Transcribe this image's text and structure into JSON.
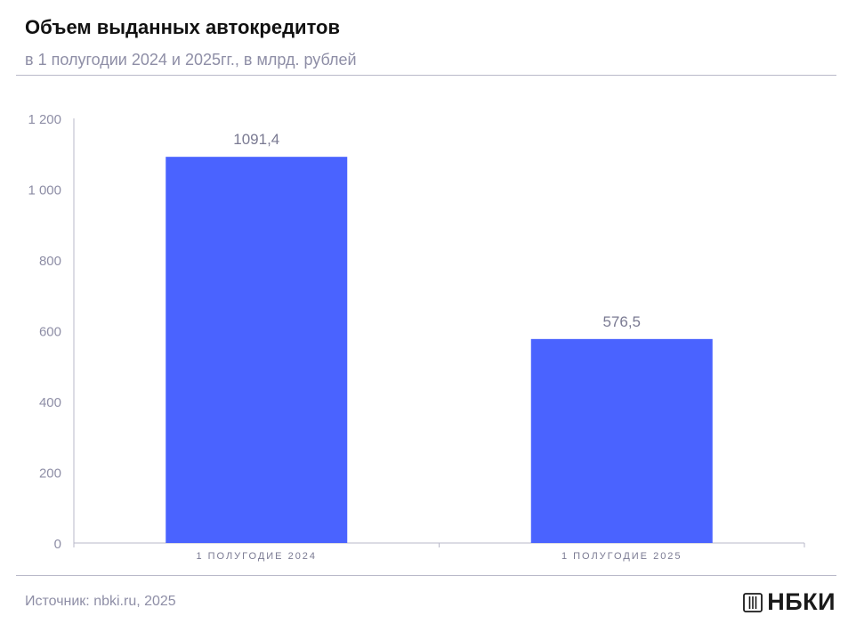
{
  "header": {
    "title": "Объем выданных автокредитов",
    "subtitle": "в 1 полугодии 2024 и 2025гг., в млрд. рублей"
  },
  "footer": {
    "source": "Источник: nbki.ru, 2025",
    "logo_text": "НБКИ",
    "logo_icon": "nbki-logo-icon"
  },
  "colors": {
    "bar": "#4a63ff",
    "axis_text": "#8e8ea6",
    "label_text": "#7a7a92",
    "axis_line": "#b9b9c9"
  },
  "chart_data": {
    "type": "bar",
    "categories": [
      "1 ПОЛУГОДИЕ 2024",
      "1 ПОЛУГОДИЕ 2025"
    ],
    "values": [
      1091.4,
      576.5
    ],
    "value_labels": [
      "1091,4",
      "576,5"
    ],
    "yticks": [
      0,
      200,
      400,
      600,
      800,
      1000,
      1200
    ],
    "ytick_labels": [
      "0",
      "200",
      "400",
      "600",
      "800",
      "1 000",
      "1 200"
    ],
    "ylim": [
      0,
      1200
    ],
    "grid": false,
    "legend": "none"
  }
}
